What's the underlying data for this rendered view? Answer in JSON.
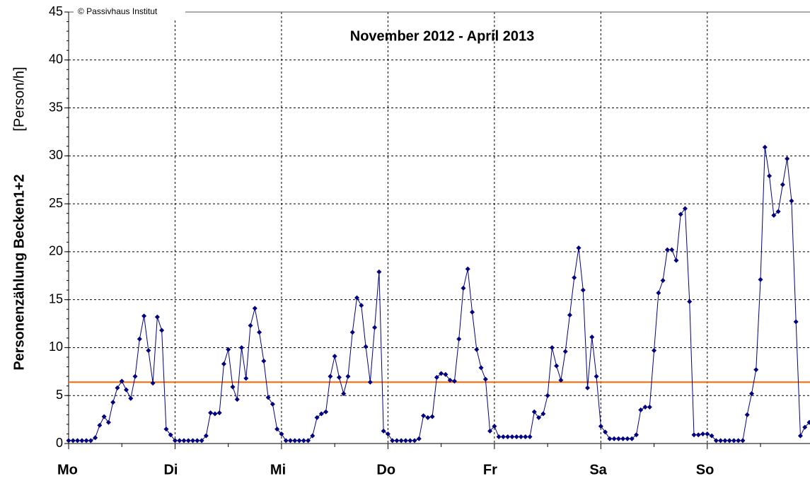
{
  "chart_data": {
    "type": "line",
    "title": "November 2012 - April 2013",
    "annotation": "© Passivhaus Institut",
    "ylabel": "Personenzählung Becken1+2",
    "yunit": "[Person/h]",
    "x": [
      0,
      1,
      2,
      3,
      4,
      5,
      6,
      7,
      8,
      9,
      10,
      11,
      12,
      13,
      14,
      15,
      16,
      17,
      18,
      19,
      20,
      21,
      22,
      23,
      24,
      25,
      26,
      27,
      28,
      29,
      30,
      31,
      32,
      33,
      34,
      35,
      36,
      37,
      38,
      39,
      40,
      41,
      42,
      43,
      44,
      45,
      46,
      47,
      48,
      49,
      50,
      51,
      52,
      53,
      54,
      55,
      56,
      57,
      58,
      59,
      60,
      61,
      62,
      63,
      64,
      65,
      66,
      67,
      68,
      69,
      70,
      71,
      72,
      73,
      74,
      75,
      76,
      77,
      78,
      79,
      80,
      81,
      82,
      83,
      84,
      85,
      86,
      87,
      88,
      89,
      90,
      91,
      92,
      93,
      94,
      95,
      96,
      97,
      98,
      99,
      100,
      101,
      102,
      103,
      104,
      105,
      106,
      107,
      108,
      109,
      110,
      111,
      112,
      113,
      114,
      115,
      116,
      117,
      118,
      119,
      120,
      121,
      122,
      123,
      124,
      125,
      126,
      127,
      128,
      129,
      130,
      131,
      132,
      133,
      134,
      135,
      136,
      137,
      138,
      139,
      140,
      141,
      142,
      143,
      144,
      145,
      146,
      147,
      148,
      149,
      150,
      151,
      152,
      153,
      154,
      155,
      156,
      157,
      158,
      159,
      160,
      161,
      162,
      163,
      164,
      165,
      166,
      167
    ],
    "series": [
      {
        "name": "Personenzählung Becken1+2",
        "color": "#000080",
        "values": [
          0.3,
          0.3,
          0.3,
          0.3,
          0.3,
          0.3,
          0.6,
          1.9,
          2.8,
          2.2,
          4.3,
          5.8,
          6.5,
          5.6,
          4.7,
          7.0,
          10.9,
          13.3,
          9.7,
          6.3,
          13.2,
          11.8,
          1.5,
          0.9,
          0.3,
          0.3,
          0.3,
          0.3,
          0.3,
          0.3,
          0.3,
          0.8,
          3.2,
          3.1,
          3.2,
          8.3,
          9.8,
          5.9,
          4.6,
          10.0,
          6.8,
          12.3,
          14.1,
          11.6,
          8.6,
          4.8,
          4.1,
          1.5,
          1.0,
          0.3,
          0.3,
          0.3,
          0.3,
          0.3,
          0.3,
          0.8,
          2.7,
          3.1,
          3.3,
          7.0,
          9.1,
          6.9,
          5.2,
          7.0,
          11.6,
          15.2,
          14.4,
          10.1,
          6.4,
          12.1,
          17.9,
          1.3,
          1.0,
          0.3,
          0.3,
          0.3,
          0.3,
          0.3,
          0.3,
          0.5,
          2.9,
          2.7,
          2.8,
          6.9,
          7.3,
          7.2,
          6.6,
          6.5,
          10.9,
          16.2,
          18.2,
          13.7,
          9.8,
          7.9,
          6.7,
          1.3,
          1.8,
          0.7,
          0.7,
          0.7,
          0.7,
          0.7,
          0.7,
          0.7,
          0.7,
          3.3,
          2.7,
          3.1,
          5.0,
          10.0,
          8.1,
          6.6,
          9.6,
          13.4,
          17.3,
          20.4,
          16.0,
          5.8,
          11.1,
          7.0,
          1.8,
          1.2,
          0.5,
          0.5,
          0.5,
          0.5,
          0.5,
          0.5,
          0.9,
          3.5,
          3.8,
          3.8,
          9.7,
          15.7,
          17.0,
          20.2,
          20.2,
          19.1,
          23.9,
          24.5,
          14.8,
          0.9,
          0.9,
          1.0,
          1.0,
          0.8,
          0.3,
          0.3,
          0.3,
          0.3,
          0.3,
          0.3,
          0.3,
          3.0,
          5.2,
          7.7,
          17.1,
          30.9,
          27.9,
          23.8,
          24.2,
          27.0,
          29.7,
          25.3,
          12.7,
          0.8,
          1.7,
          2.2
        ]
      }
    ],
    "reference_line": {
      "value": 6.4,
      "color": "#ff6600"
    },
    "xlim": [
      0,
      167
    ],
    "xticks": [
      {
        "value": 0,
        "label": "Mo"
      },
      {
        "value": 24,
        "label": "Di"
      },
      {
        "value": 48,
        "label": "Mi"
      },
      {
        "value": 72,
        "label": "Do"
      },
      {
        "value": 96,
        "label": "Fr"
      },
      {
        "value": 120,
        "label": "Sa"
      },
      {
        "value": 144,
        "label": "So"
      }
    ],
    "ylim": [
      0,
      45
    ],
    "yticks": [
      0,
      5,
      10,
      15,
      20,
      25,
      30,
      35,
      40,
      45
    ],
    "grid": true,
    "title_color": "#ff0000"
  }
}
